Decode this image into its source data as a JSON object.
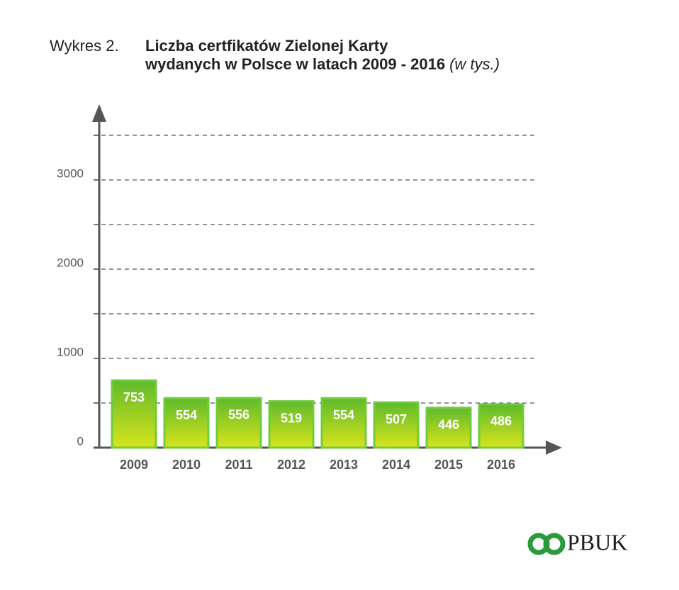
{
  "chart_data": {
    "type": "bar",
    "title_prefix": "Wykres 2.",
    "title": "Liczba certfikatów Zielonej Karty",
    "title_line2": "wydanych w Polsce w latach 2009 - 2016",
    "unit_note": "(w tys.)",
    "categories": [
      "2009",
      "2010",
      "2011",
      "2012",
      "2013",
      "2014",
      "2015",
      "2016"
    ],
    "values": [
      753,
      554,
      556,
      519,
      554,
      507,
      446,
      486
    ],
    "color": "#5fba2c",
    "ylim": [
      0,
      3500
    ],
    "yticks": [
      0,
      1000,
      2000,
      3000
    ],
    "minor_grid": [
      500,
      1500,
      2500,
      3500
    ],
    "grid": true,
    "logo": "PBUK"
  }
}
